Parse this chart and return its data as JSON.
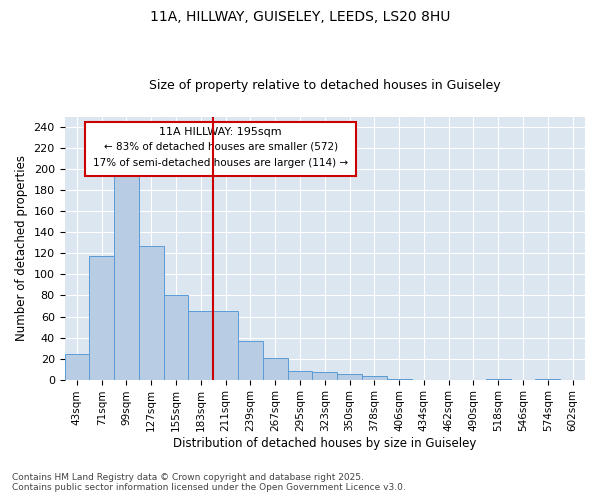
{
  "title_line1": "11A, HILLWAY, GUISELEY, LEEDS, LS20 8HU",
  "title_line2": "Size of property relative to detached houses in Guiseley",
  "xlabel": "Distribution of detached houses by size in Guiseley",
  "ylabel": "Number of detached properties",
  "categories": [
    "43sqm",
    "71sqm",
    "99sqm",
    "127sqm",
    "155sqm",
    "183sqm",
    "211sqm",
    "239sqm",
    "267sqm",
    "295sqm",
    "323sqm",
    "350sqm",
    "378sqm",
    "406sqm",
    "434sqm",
    "462sqm",
    "490sqm",
    "518sqm",
    "546sqm",
    "574sqm",
    "602sqm"
  ],
  "values": [
    24,
    118,
    200,
    127,
    80,
    65,
    65,
    37,
    21,
    8,
    7,
    5,
    3,
    1,
    0,
    0,
    0,
    1,
    0,
    1,
    0
  ],
  "bar_color": "#b8cce4",
  "bar_edge_color": "#5b9bd5",
  "plot_bg_color": "#dce6f1",
  "fig_bg_color": "#ffffff",
  "grid_color": "#ffffff",
  "marker_label": "11A HILLWAY: 195sqm",
  "annotation_line1": "← 83% of detached houses are smaller (572)",
  "annotation_line2": "17% of semi-detached houses are larger (114) →",
  "annotation_box_edge": "#cc0000",
  "marker_line_color": "#cc0000",
  "ylim": [
    0,
    250
  ],
  "yticks": [
    0,
    20,
    40,
    60,
    80,
    100,
    120,
    140,
    160,
    180,
    200,
    220,
    240
  ],
  "footnote1": "Contains HM Land Registry data © Crown copyright and database right 2025.",
  "footnote2": "Contains public sector information licensed under the Open Government Licence v3.0."
}
